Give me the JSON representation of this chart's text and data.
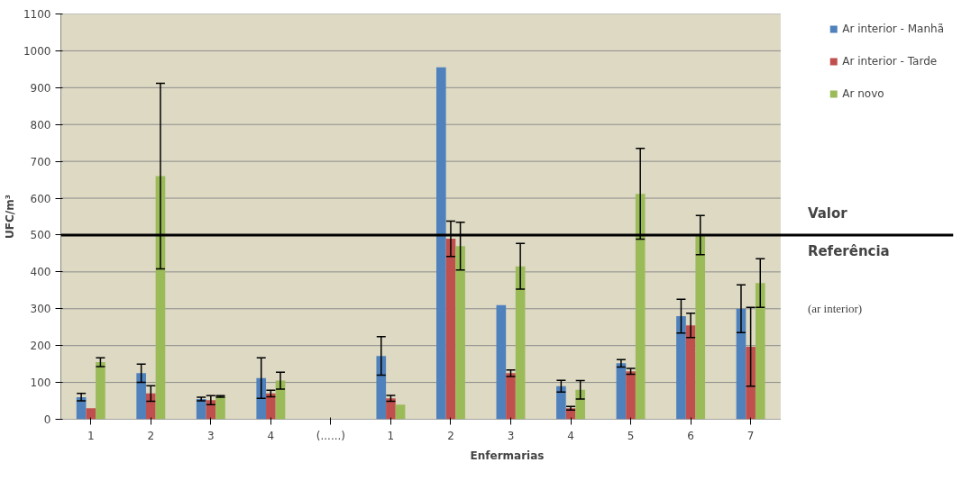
{
  "chart_data": {
    "type": "bar",
    "xlabel": "Enfermarias",
    "ylabel": "UFC/m³",
    "categories": [
      "1",
      "2",
      "3",
      "4",
      "(......)",
      "1",
      "2",
      "3",
      "4",
      "5",
      "6",
      "7"
    ],
    "series": [
      {
        "name": "Ar interior - Manhã",
        "color": "#4f81bd",
        "values": [
          60,
          125,
          55,
          112,
          null,
          172,
          955,
          310,
          90,
          152,
          280,
          300
        ],
        "errors": [
          10,
          25,
          5,
          55,
          null,
          52,
          null,
          null,
          16,
          10,
          46,
          65
        ]
      },
      {
        "name": "Ar interior - Tarde",
        "color": "#c0504d",
        "values": [
          30,
          70,
          52,
          70,
          null,
          57,
          490,
          125,
          30,
          130,
          255,
          197
        ],
        "errors": [
          null,
          21,
          12,
          9,
          null,
          8,
          48,
          9,
          5,
          8,
          33,
          107
        ]
      },
      {
        "name": "Ar novo",
        "color": "#9bbb59",
        "values": [
          155,
          660,
          62,
          105,
          null,
          40,
          470,
          415,
          80,
          612,
          500,
          370
        ],
        "errors": [
          12,
          252,
          2,
          23,
          null,
          null,
          65,
          62,
          25,
          123,
          53,
          66
        ]
      }
    ],
    "ylim": [
      0,
      1100
    ],
    "yticks": [
      0,
      100,
      200,
      300,
      400,
      500,
      600,
      700,
      800,
      900,
      1000,
      1100
    ],
    "grid": "y",
    "legend": "top right",
    "ref_lines": [
      {
        "axis": "y",
        "value": 500,
        "label": "Valor Referência",
        "color": "#000000"
      }
    ],
    "annotations": [
      "(ar interior)"
    ]
  }
}
